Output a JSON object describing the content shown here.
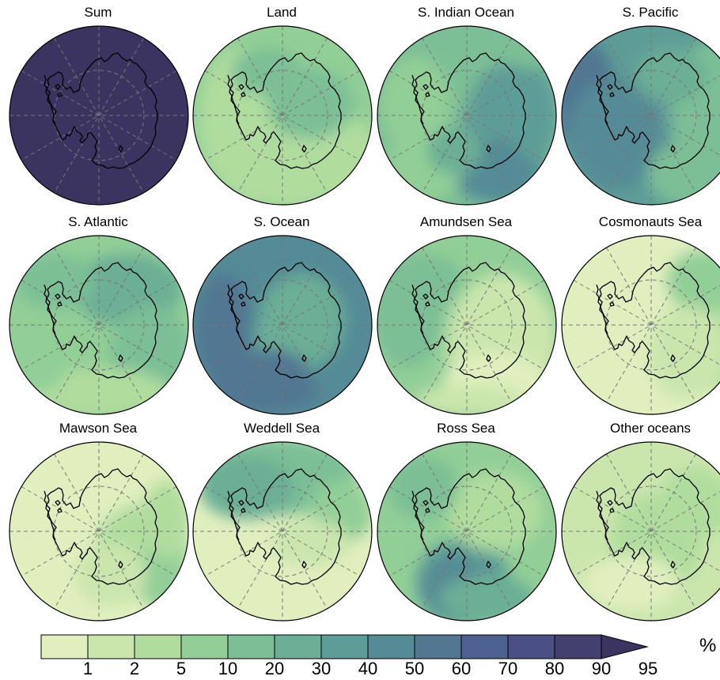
{
  "figure": {
    "panels": [
      {
        "title": "Sum",
        "pattern": "sum"
      },
      {
        "title": "Land",
        "pattern": "land"
      },
      {
        "title": "S. Indian Ocean",
        "pattern": "sindian"
      },
      {
        "title": "S. Pacific",
        "pattern": "spacific"
      },
      {
        "title": "S. Atlantic",
        "pattern": "satlantic"
      },
      {
        "title": "S. Ocean",
        "pattern": "socean"
      },
      {
        "title": "Amundsen Sea",
        "pattern": "amundsen"
      },
      {
        "title": "Cosmonauts Sea",
        "pattern": "cosmonauts"
      },
      {
        "title": "Mawson Sea",
        "pattern": "mawson"
      },
      {
        "title": "Weddell Sea",
        "pattern": "weddell"
      },
      {
        "title": "Ross Sea",
        "pattern": "ross"
      },
      {
        "title": "Other oceans",
        "pattern": "other"
      }
    ],
    "colorbar": {
      "unit": "%",
      "tick_labels": [
        "1",
        "2",
        "5",
        "10",
        "20",
        "30",
        "40",
        "50",
        "60",
        "70",
        "80",
        "90",
        "95"
      ],
      "colors": [
        "#e1efbe",
        "#cae6ad",
        "#b0dd9e",
        "#92cf97",
        "#7cbf96",
        "#6baf96",
        "#5d9d97",
        "#548b96",
        "#517793",
        "#4c6190",
        "#4a4f84",
        "#433f6e",
        "#3b3461"
      ]
    }
  }
}
